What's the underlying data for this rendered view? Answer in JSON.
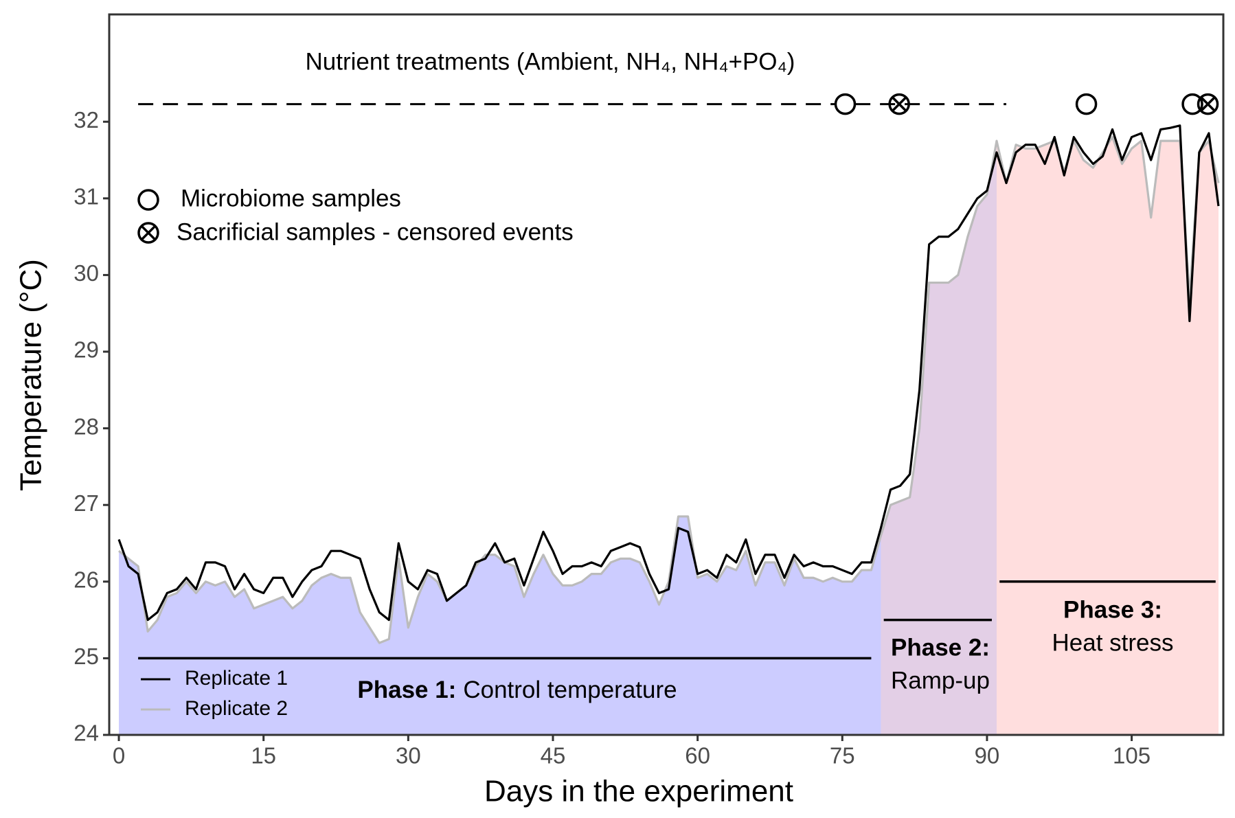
{
  "chart_data": {
    "type": "line",
    "x_label": "Days in the experiment",
    "y_label": "Temperature (°C)",
    "xlim": [
      -1,
      114.5
    ],
    "ylim": [
      24,
      33.4
    ],
    "xticks": [
      0,
      15,
      30,
      45,
      60,
      75,
      90,
      105
    ],
    "yticks": [
      24,
      25,
      26,
      27,
      28,
      29,
      30,
      31,
      32
    ],
    "x": [
      0,
      1,
      2,
      3,
      4,
      5,
      6,
      7,
      8,
      9,
      10,
      11,
      12,
      13,
      14,
      15,
      16,
      17,
      18,
      19,
      20,
      21,
      22,
      23,
      24,
      25,
      26,
      27,
      28,
      29,
      30,
      31,
      32,
      33,
      34,
      35,
      36,
      37,
      38,
      39,
      40,
      41,
      42,
      43,
      44,
      45,
      46,
      47,
      48,
      49,
      50,
      51,
      52,
      53,
      54,
      55,
      56,
      57,
      58,
      59,
      60,
      61,
      62,
      63,
      64,
      65,
      66,
      67,
      68,
      69,
      70,
      71,
      72,
      73,
      74,
      75,
      76,
      77,
      78,
      79,
      80,
      81,
      82,
      83,
      84,
      85,
      86,
      87,
      88,
      89,
      90,
      91,
      92,
      93,
      94,
      95,
      96,
      97,
      98,
      99,
      100,
      101,
      102,
      103,
      104,
      105,
      106,
      107,
      108,
      109,
      110,
      111,
      112,
      113,
      114
    ],
    "series": [
      {
        "name": "Replicate 1",
        "color": "#000000",
        "values": [
          26.55,
          26.2,
          26.1,
          25.5,
          25.6,
          25.85,
          25.9,
          26.05,
          25.9,
          26.25,
          26.25,
          26.2,
          25.9,
          26.1,
          25.9,
          25.85,
          26.05,
          26.05,
          25.8,
          26.0,
          26.15,
          26.2,
          26.4,
          26.4,
          26.35,
          26.3,
          25.9,
          25.6,
          25.5,
          26.5,
          26.0,
          25.9,
          26.15,
          26.1,
          25.75,
          25.85,
          25.95,
          26.25,
          26.3,
          26.5,
          26.25,
          26.3,
          25.95,
          26.3,
          26.65,
          26.4,
          26.1,
          26.2,
          26.2,
          26.25,
          26.2,
          26.4,
          26.45,
          26.5,
          26.45,
          26.1,
          25.85,
          25.9,
          26.7,
          26.65,
          26.1,
          26.15,
          26.05,
          26.35,
          26.25,
          26.55,
          26.1,
          26.35,
          26.35,
          26.05,
          26.35,
          26.2,
          26.25,
          26.2,
          26.2,
          26.15,
          26.1,
          26.25,
          26.25,
          26.7,
          27.2,
          27.25,
          27.4,
          28.5,
          30.4,
          30.5,
          30.5,
          30.6,
          30.8,
          31.0,
          31.1,
          31.6,
          31.2,
          31.6,
          31.7,
          31.7,
          31.45,
          31.8,
          31.3,
          31.8,
          31.6,
          31.45,
          31.55,
          31.9,
          31.5,
          31.8,
          31.85,
          31.5,
          31.9,
          31.92,
          31.95,
          29.4,
          31.6,
          31.85,
          30.9
        ]
      },
      {
        "name": "Replicate 2",
        "color": "#bbbbbb",
        "values": [
          26.4,
          26.3,
          26.2,
          25.35,
          25.5,
          25.8,
          25.85,
          26.0,
          25.85,
          26.0,
          25.95,
          26.0,
          25.8,
          25.9,
          25.65,
          25.7,
          25.75,
          25.8,
          25.65,
          25.75,
          25.95,
          26.05,
          26.1,
          26.05,
          26.05,
          25.6,
          25.4,
          25.2,
          25.25,
          26.3,
          25.4,
          25.8,
          26.1,
          26.0,
          25.75,
          25.85,
          25.95,
          26.2,
          26.35,
          26.35,
          26.25,
          26.2,
          25.8,
          26.1,
          26.35,
          26.1,
          25.95,
          25.95,
          26.0,
          26.1,
          26.1,
          26.25,
          26.3,
          26.3,
          26.25,
          26.0,
          25.7,
          26.0,
          26.85,
          26.85,
          26.05,
          26.1,
          26.0,
          26.2,
          26.15,
          26.4,
          25.95,
          26.25,
          26.25,
          25.95,
          26.3,
          26.05,
          26.05,
          26.0,
          26.05,
          26.0,
          26.0,
          26.15,
          26.15,
          26.6,
          27.0,
          27.05,
          27.1,
          28.0,
          29.9,
          29.9,
          29.9,
          30.0,
          30.5,
          30.9,
          31.05,
          31.75,
          31.2,
          31.7,
          31.65,
          31.65,
          31.7,
          31.75,
          31.35,
          31.75,
          31.5,
          31.4,
          31.6,
          31.8,
          31.45,
          31.65,
          31.75,
          30.75,
          31.75,
          31.75,
          31.75,
          29.7,
          31.6,
          31.75,
          31.2
        ]
      }
    ],
    "phases": [
      {
        "label": "Phase 1:",
        "description": "Control temperature",
        "start": -1,
        "end": 79,
        "color": "#ccccff",
        "bar": {
          "x": [
            2,
            78
          ],
          "y": 25
        }
      },
      {
        "label": "Phase 2:",
        "description": "Ramp-up",
        "start": 79,
        "end": 91,
        "color": "#e3cfe6",
        "bar": {
          "x": [
            79.3,
            90.5
          ],
          "y": 25.5
        }
      },
      {
        "label": "Phase 3:",
        "description": "Heat stress",
        "start": 91,
        "end": 114.5,
        "color": "#ffdede",
        "bar": {
          "x": [
            91.3,
            113.7
          ],
          "y": 26
        }
      }
    ],
    "nutrient_treatments": {
      "label": "Nutrient treatments (Ambient, NH₄, NH₄+PO₄)",
      "x": [
        2,
        92
      ],
      "y": 32.23
    },
    "microbiome_samples": {
      "label": "Microbiome samples",
      "x": [
        75.3,
        100.3,
        111.3
      ]
    },
    "sacrificial_samples": {
      "label": "Sacrificial samples - censored events",
      "x": [
        80.9,
        112.9
      ]
    }
  }
}
